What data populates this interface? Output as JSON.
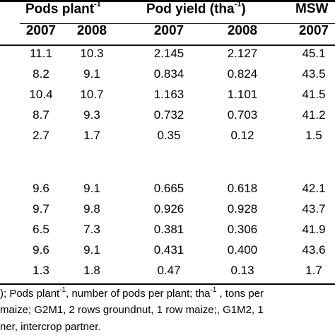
{
  "header": {
    "pods_plant": {
      "label": "Pods plant",
      "sup": "-1"
    },
    "pod_yield": {
      "label_pre": "Pod yield (tha",
      "sup": "-1",
      "label_post": ")"
    },
    "msw": {
      "label": "MSW"
    }
  },
  "years": [
    "2007",
    "2008",
    "2007",
    "2008",
    "2007"
  ],
  "rows": [
    [
      "11.1",
      "10.3",
      "2.145",
      "2.127",
      "45.1"
    ],
    [
      "8.2",
      "9.1",
      "0.834",
      "0.824",
      "43.5"
    ],
    [
      "10.4",
      "10.7",
      "1.163",
      "1.101",
      "41.5"
    ],
    [
      "8.7",
      "9.3",
      "0.732",
      "0.703",
      "41.2"
    ],
    [
      "2.7",
      "1.7",
      "0.35",
      "0.12",
      "1.5"
    ],
    [
      "9.6",
      "9.1",
      "0.665",
      "0.618",
      "42.1"
    ],
    [
      "9.7",
      "9.8",
      "0.926",
      "0.928",
      "43.7"
    ],
    [
      "6.5",
      "7.3",
      "0.381",
      "0.306",
      "41.9"
    ],
    [
      "9.6",
      "9.1",
      "0.431",
      "0.400",
      "43.6"
    ],
    [
      "1.3",
      "1.8",
      "0.47",
      "0.13",
      "1.7"
    ]
  ],
  "footnote": {
    "line1_a": "); Pods plant",
    "line1_sup1": "-1",
    "line1_b": ", number of pods per plant; tha",
    "line1_sup2": "-1",
    "line1_c": " , tons per",
    "line2": "maize; G2M1, 2 rows groundnut, 1 row maize;, G1M2, 1",
    "line3": "ner, intercrop partner."
  }
}
